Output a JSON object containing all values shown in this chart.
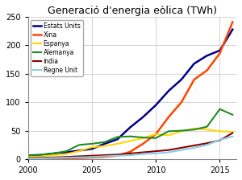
{
  "title": "Generació d'energia eòlica (TWh)",
  "years": [
    2000,
    2001,
    2002,
    2003,
    2004,
    2005,
    2006,
    2007,
    2008,
    2009,
    2010,
    2011,
    2012,
    2013,
    2014,
    2015,
    2016
  ],
  "series": {
    "Estats Units": {
      "color": "#00008B",
      "linewidth": 1.8,
      "data": [
        6,
        7,
        10,
        12,
        15,
        18,
        27,
        35,
        56,
        74,
        95,
        120,
        140,
        168,
        182,
        191,
        228
      ]
    },
    "Xina": {
      "color": "#FF4500",
      "linewidth": 1.8,
      "data": [
        0.5,
        0.7,
        0.9,
        1.2,
        2,
        3,
        4,
        6,
        13,
        27,
        44,
        74,
        100,
        140,
        156,
        186,
        241
      ]
    },
    "Espanya": {
      "color": "#FFD700",
      "linewidth": 1.5,
      "data": [
        4,
        5,
        7,
        9,
        14,
        21,
        23,
        27,
        32,
        37,
        44,
        42,
        49,
        54,
        52,
        49,
        48
      ]
    },
    "Alemanya": {
      "color": "#228B22",
      "linewidth": 1.5,
      "data": [
        7,
        8,
        10,
        14,
        25,
        27,
        30,
        39,
        40,
        38,
        37,
        49,
        50,
        52,
        57,
        88,
        78
      ]
    },
    "índia": {
      "color": "#8B0000",
      "linewidth": 1.5,
      "data": [
        2,
        2.5,
        3,
        4,
        5,
        6,
        7,
        8,
        10,
        12,
        14,
        16,
        20,
        24,
        28,
        33,
        46
      ]
    },
    "Regne Unit": {
      "color": "#87CEEB",
      "linewidth": 1.5,
      "data": [
        1,
        1.5,
        2,
        2.5,
        3,
        4,
        5,
        6,
        7,
        9,
        10,
        12,
        16,
        20,
        25,
        34,
        40
      ]
    }
  },
  "xlim": [
    2000,
    2016.3
  ],
  "ylim": [
    0,
    250
  ],
  "yticks": [
    0,
    50,
    100,
    150,
    200,
    250
  ],
  "xticks": [
    2000,
    2005,
    2010,
    2015
  ],
  "grid_color": "#cccccc",
  "bg_color": "#ffffff",
  "legend_order": [
    "Estats Units",
    "Xina",
    "Espanya",
    "Alemanya",
    "índia",
    "Regne Unit"
  ]
}
